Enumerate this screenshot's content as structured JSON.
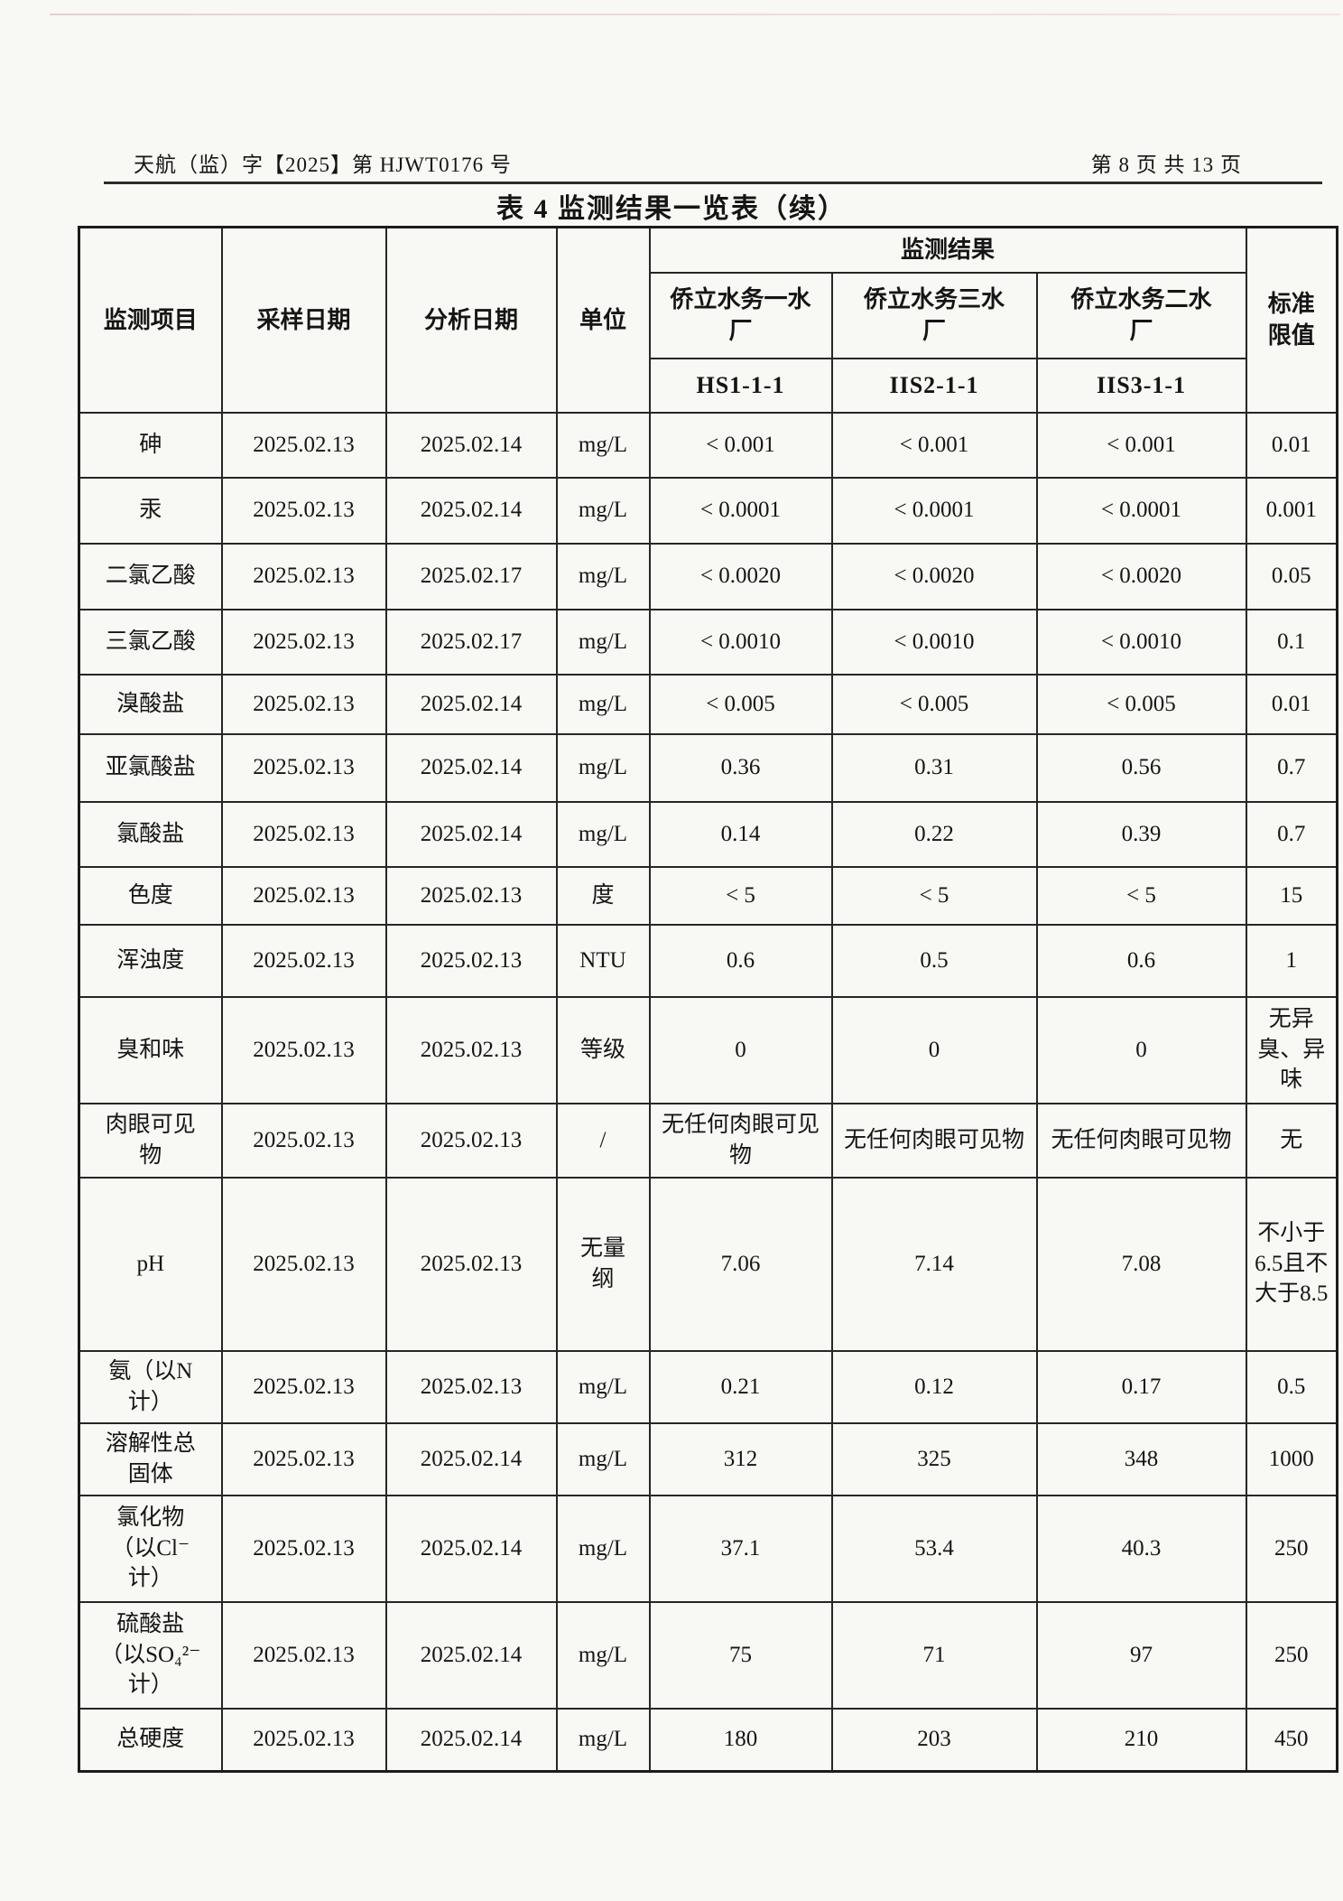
{
  "page_header": {
    "doc_number": "天航（监）字【2025】第 HJWT0176 号",
    "page_info": "第 8 页 共 13 页"
  },
  "table": {
    "title": "表 4 监测结果一览表（续）",
    "headers": {
      "item": "监测项目",
      "sample_date": "采样日期",
      "analysis_date": "分析日期",
      "unit": "单位",
      "result_group": "监测结果",
      "plants": [
        "侨立水务一水厂",
        "侨立水务三水厂",
        "侨立水务二水厂"
      ],
      "sample_ids": [
        "HS1-1-1",
        "IIS2-1-1",
        "IIS3-1-1"
      ],
      "limit": "标准限值"
    },
    "rows": [
      {
        "item": "砷",
        "sample_date": "2025.02.13",
        "analysis_date": "2025.02.14",
        "unit": "mg/L",
        "values": [
          "< 0.001",
          "< 0.001",
          "< 0.001"
        ],
        "limit": "0.01"
      },
      {
        "item": "汞",
        "sample_date": "2025.02.13",
        "analysis_date": "2025.02.14",
        "unit": "mg/L",
        "values": [
          "< 0.0001",
          "< 0.0001",
          "< 0.0001"
        ],
        "limit": "0.001"
      },
      {
        "item": "二氯乙酸",
        "sample_date": "2025.02.13",
        "analysis_date": "2025.02.17",
        "unit": "mg/L",
        "values": [
          "< 0.0020",
          "< 0.0020",
          "< 0.0020"
        ],
        "limit": "0.05"
      },
      {
        "item": "三氯乙酸",
        "sample_date": "2025.02.13",
        "analysis_date": "2025.02.17",
        "unit": "mg/L",
        "values": [
          "< 0.0010",
          "< 0.0010",
          "< 0.0010"
        ],
        "limit": "0.1"
      },
      {
        "item": "溴酸盐",
        "sample_date": "2025.02.13",
        "analysis_date": "2025.02.14",
        "unit": "mg/L",
        "values": [
          "< 0.005",
          "< 0.005",
          "< 0.005"
        ],
        "limit": "0.01"
      },
      {
        "item": "亚氯酸盐",
        "sample_date": "2025.02.13",
        "analysis_date": "2025.02.14",
        "unit": "mg/L",
        "values": [
          "0.36",
          "0.31",
          "0.56"
        ],
        "limit": "0.7"
      },
      {
        "item": "氯酸盐",
        "sample_date": "2025.02.13",
        "analysis_date": "2025.02.14",
        "unit": "mg/L",
        "values": [
          "0.14",
          "0.22",
          "0.39"
        ],
        "limit": "0.7"
      },
      {
        "item": "色度",
        "sample_date": "2025.02.13",
        "analysis_date": "2025.02.13",
        "unit": "度",
        "values": [
          "< 5",
          "< 5",
          "< 5"
        ],
        "limit": "15"
      },
      {
        "item": "浑浊度",
        "sample_date": "2025.02.13",
        "analysis_date": "2025.02.13",
        "unit": "NTU",
        "values": [
          "0.6",
          "0.5",
          "0.6"
        ],
        "limit": "1"
      },
      {
        "item": "臭和味",
        "sample_date": "2025.02.13",
        "analysis_date": "2025.02.13",
        "unit": "等级",
        "values": [
          "0",
          "0",
          "0"
        ],
        "limit": "无异臭、异味"
      },
      {
        "item": "肉眼可见物",
        "sample_date": "2025.02.13",
        "analysis_date": "2025.02.13",
        "unit": "/",
        "values": [
          "无任何肉眼可见物",
          "无任何肉眼可见物",
          "无任何肉眼可见物"
        ],
        "limit": "无"
      },
      {
        "item": "pH",
        "sample_date": "2025.02.13",
        "analysis_date": "2025.02.13",
        "unit": "无量纲",
        "values": [
          "7.06",
          "7.14",
          "7.08"
        ],
        "limit": "不小于6.5且不大于8.5"
      },
      {
        "item": "氨（以N计）",
        "sample_date": "2025.02.13",
        "analysis_date": "2025.02.13",
        "unit": "mg/L",
        "values": [
          "0.21",
          "0.12",
          "0.17"
        ],
        "limit": "0.5"
      },
      {
        "item": "溶解性总固体",
        "sample_date": "2025.02.13",
        "analysis_date": "2025.02.14",
        "unit": "mg/L",
        "values": [
          "312",
          "325",
          "348"
        ],
        "limit": "1000"
      },
      {
        "item": "氯化物（以Cl⁻计）",
        "sample_date": "2025.02.13",
        "analysis_date": "2025.02.14",
        "unit": "mg/L",
        "values": [
          "37.1",
          "53.4",
          "40.3"
        ],
        "limit": "250"
      },
      {
        "item": "硫酸盐（以SO₄²⁻计）",
        "sample_date": "2025.02.13",
        "analysis_date": "2025.02.14",
        "unit": "mg/L",
        "values": [
          "75",
          "71",
          "97"
        ],
        "limit": "250"
      },
      {
        "item": "总硬度",
        "sample_date": "2025.02.13",
        "analysis_date": "2025.02.14",
        "unit": "mg/L",
        "values": [
          "180",
          "203",
          "210"
        ],
        "limit": "450"
      }
    ]
  }
}
